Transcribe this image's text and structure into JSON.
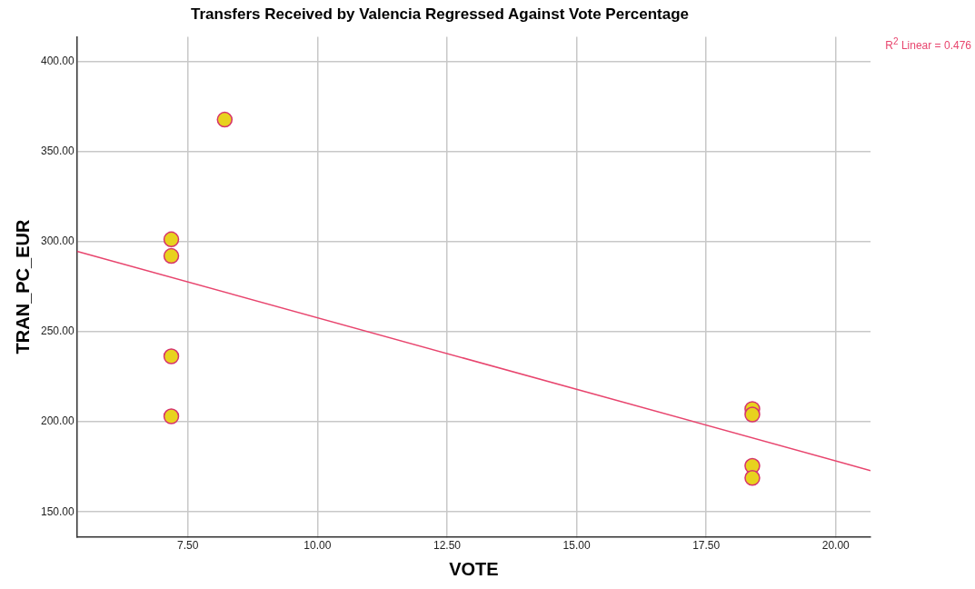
{
  "chart_data": {
    "type": "scatter",
    "title": "Transfers Received by Valencia Regressed Against Vote Percentage",
    "xlabel": "VOTE",
    "ylabel": "TRAN_PC_EUR",
    "series": [
      {
        "color": "#e8d21e",
        "marker": "circle",
        "x": [
          7.18,
          7.18,
          7.18,
          7.18,
          8.21,
          18.39,
          18.39,
          18.39,
          18.39
        ],
        "values": [
          301.3,
          292.1,
          236.4,
          203.1,
          367.8,
          207.2,
          204.1,
          175.6,
          168.9
        ]
      },
      {
        "type": "line",
        "color": "#e8456e",
        "marker": "none",
        "x": [
          5.36,
          20.67
        ],
        "values": [
          294.7,
          173.0
        ]
      }
    ],
    "xlim": [
      5.36,
      20.67
    ],
    "xticks": [
      {
        "value": 7.5,
        "label": "7.50"
      },
      {
        "value": 10,
        "label": "10.00"
      },
      {
        "value": 12.5,
        "label": "12.50"
      },
      {
        "value": 15,
        "label": "15.00"
      },
      {
        "value": 17.5,
        "label": "17.50"
      },
      {
        "value": 20,
        "label": "20.00"
      }
    ],
    "ylim": [
      136.2,
      413.8
    ],
    "yticks": [
      {
        "value": 150,
        "label": "150.00"
      },
      {
        "value": 200,
        "label": "200.00"
      },
      {
        "value": 250,
        "label": "250.00"
      },
      {
        "value": 300,
        "label": "300.00"
      },
      {
        "value": 350,
        "label": "350.00"
      },
      {
        "value": 400,
        "label": "400.00"
      }
    ],
    "grid": true,
    "annotations": [
      "R$^{2}$ Linear = 0.476"
    ]
  }
}
